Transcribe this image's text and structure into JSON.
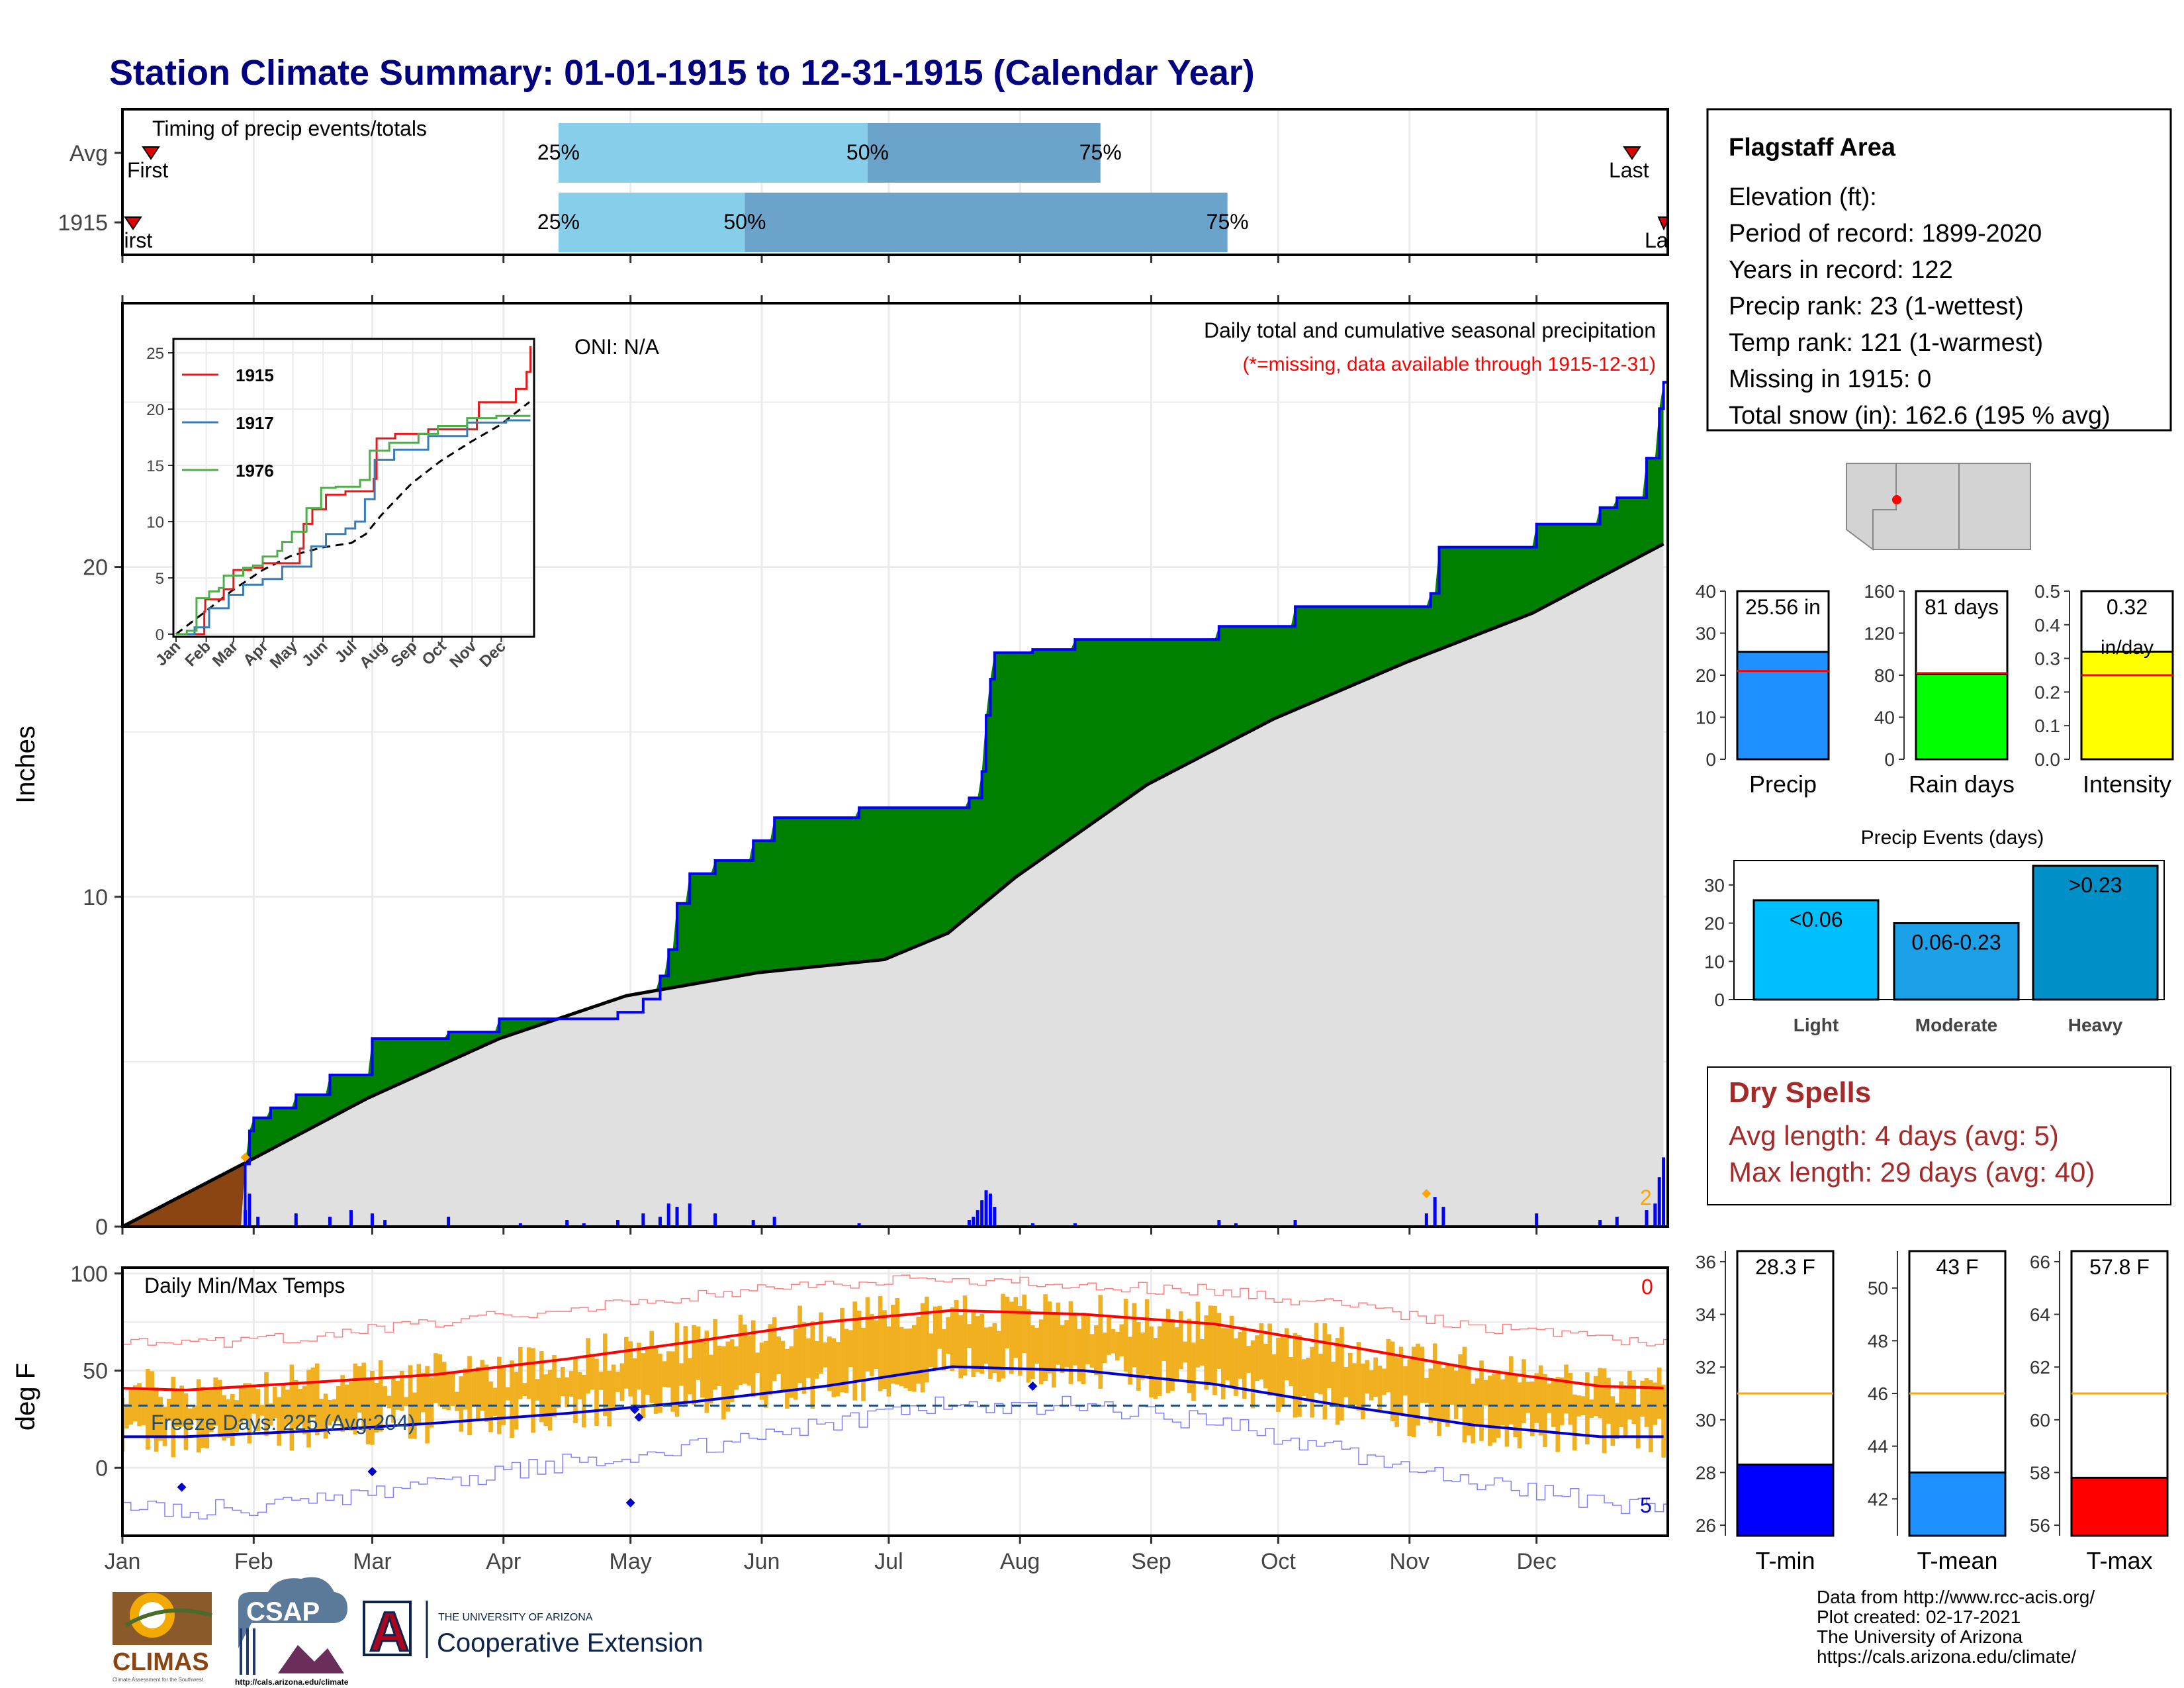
{
  "page_title": "Station Climate Summary: 01-01-1915 to 12-31-1915 (Calendar Year)",
  "colors": {
    "title": "#000080",
    "precip_green": "#008000",
    "cumulative_line": "#0000ff",
    "avg_fill": "#e0e0e0",
    "early_brown": "#8b4513",
    "daily_bar": "#0000ff",
    "timing_light": "#87ceeb",
    "timing_dark": "#6ba3cb",
    "temp_bar": "#f0b020",
    "tmax_line": "#ff0000",
    "tmin_line": "#0000cc",
    "dry_spells": "#a52a2a",
    "freeze_line": "#1f4e79"
  },
  "timing": {
    "title": "Timing of precip events/totals",
    "rows": [
      {
        "label": "Avg",
        "first": "First",
        "last": "Last",
        "p25_day": 104,
        "p50_day": 177,
        "p75_day": 232,
        "first_day": 6,
        "last_day": 366
      },
      {
        "label": "1915",
        "first": "First",
        "last": "Last",
        "p25_day": 104,
        "p50_day": 148,
        "p75_day": 262,
        "first_day": 1,
        "last_day": 365
      }
    ],
    "pct_labels": [
      "25%",
      "50%",
      "75%"
    ]
  },
  "main_chart": {
    "ylabel": "Inches",
    "oni": "ONI: N/A",
    "title": "Daily total and cumulative seasonal precipitation",
    "missing_note": "(*=missing, data available through 1915-12-31)",
    "y_ticks": [
      0,
      10,
      20
    ],
    "ylim": [
      0,
      28
    ],
    "x_months": [
      "Jan",
      "Feb",
      "Mar",
      "Apr",
      "May",
      "Jun",
      "Jul",
      "Aug",
      "Sep",
      "Oct",
      "Nov",
      "Dec"
    ],
    "corner_count": "2",
    "cumulative_1915_steps": [
      {
        "day": 1,
        "value": 0.0
      },
      {
        "day": 30,
        "value": 1.9
      },
      {
        "day": 31,
        "value": 2.9
      },
      {
        "day": 32,
        "value": 3.3
      },
      {
        "day": 36,
        "value": 3.6
      },
      {
        "day": 42,
        "value": 4.0
      },
      {
        "day": 50,
        "value": 4.6
      },
      {
        "day": 60,
        "value": 5.7
      },
      {
        "day": 78,
        "value": 5.9
      },
      {
        "day": 90,
        "value": 6.3
      },
      {
        "day": 118,
        "value": 6.5
      },
      {
        "day": 124,
        "value": 6.9
      },
      {
        "day": 128,
        "value": 7.6
      },
      {
        "day": 130,
        "value": 8.4
      },
      {
        "day": 132,
        "value": 9.8
      },
      {
        "day": 135,
        "value": 10.7
      },
      {
        "day": 141,
        "value": 11.1
      },
      {
        "day": 150,
        "value": 11.7
      },
      {
        "day": 155,
        "value": 12.4
      },
      {
        "day": 175,
        "value": 12.7
      },
      {
        "day": 201,
        "value": 13.0
      },
      {
        "day": 204,
        "value": 13.8
      },
      {
        "day": 205,
        "value": 15.5
      },
      {
        "day": 206,
        "value": 16.6
      },
      {
        "day": 207,
        "value": 17.4
      },
      {
        "day": 216,
        "value": 17.5
      },
      {
        "day": 226,
        "value": 17.8
      },
      {
        "day": 260,
        "value": 18.2
      },
      {
        "day": 278,
        "value": 18.8
      },
      {
        "day": 310,
        "value": 19.2
      },
      {
        "day": 312,
        "value": 20.6
      },
      {
        "day": 335,
        "value": 21.3
      },
      {
        "day": 350,
        "value": 21.8
      },
      {
        "day": 354,
        "value": 22.1
      },
      {
        "day": 361,
        "value": 23.3
      },
      {
        "day": 364,
        "value": 24.8
      },
      {
        "day": 365,
        "value": 25.6
      }
    ],
    "average_cumulative": [
      {
        "day": 1,
        "value": 0.0
      },
      {
        "day": 31,
        "value": 2.0
      },
      {
        "day": 59,
        "value": 3.9
      },
      {
        "day": 90,
        "value": 5.7
      },
      {
        "day": 120,
        "value": 7.0
      },
      {
        "day": 151,
        "value": 7.7
      },
      {
        "day": 181,
        "value": 8.1
      },
      {
        "day": 196,
        "value": 8.9
      },
      {
        "day": 212,
        "value": 10.6
      },
      {
        "day": 243,
        "value": 13.4
      },
      {
        "day": 273,
        "value": 15.4
      },
      {
        "day": 304,
        "value": 17.1
      },
      {
        "day": 334,
        "value": 18.6
      },
      {
        "day": 365,
        "value": 20.7
      }
    ],
    "daily_precip": [
      {
        "day": 30,
        "value": 0.5
      },
      {
        "day": 31,
        "value": 1.0
      },
      {
        "day": 33,
        "value": 0.3
      },
      {
        "day": 42,
        "value": 0.4
      },
      {
        "day": 50,
        "value": 0.3
      },
      {
        "day": 55,
        "value": 0.5
      },
      {
        "day": 60,
        "value": 0.4
      },
      {
        "day": 63,
        "value": 0.2
      },
      {
        "day": 78,
        "value": 0.3
      },
      {
        "day": 95,
        "value": 0.1
      },
      {
        "day": 106,
        "value": 0.2
      },
      {
        "day": 110,
        "value": 0.1
      },
      {
        "day": 118,
        "value": 0.2
      },
      {
        "day": 124,
        "value": 0.4
      },
      {
        "day": 128,
        "value": 0.3
      },
      {
        "day": 130,
        "value": 0.7
      },
      {
        "day": 132,
        "value": 0.6
      },
      {
        "day": 135,
        "value": 0.7
      },
      {
        "day": 141,
        "value": 0.4
      },
      {
        "day": 150,
        "value": 0.2
      },
      {
        "day": 155,
        "value": 0.3
      },
      {
        "day": 175,
        "value": 0.1
      },
      {
        "day": 201,
        "value": 0.2
      },
      {
        "day": 202,
        "value": 0.3
      },
      {
        "day": 203,
        "value": 0.5
      },
      {
        "day": 204,
        "value": 0.8
      },
      {
        "day": 205,
        "value": 1.1
      },
      {
        "day": 206,
        "value": 1.0
      },
      {
        "day": 207,
        "value": 0.6
      },
      {
        "day": 216,
        "value": 0.1
      },
      {
        "day": 226,
        "value": 0.1
      },
      {
        "day": 260,
        "value": 0.2
      },
      {
        "day": 264,
        "value": 0.1
      },
      {
        "day": 278,
        "value": 0.2
      },
      {
        "day": 309,
        "value": 0.4
      },
      {
        "day": 311,
        "value": 0.9
      },
      {
        "day": 313,
        "value": 0.6
      },
      {
        "day": 335,
        "value": 0.4
      },
      {
        "day": 350,
        "value": 0.2
      },
      {
        "day": 354,
        "value": 0.3
      },
      {
        "day": 361,
        "value": 0.5
      },
      {
        "day": 363,
        "value": 0.7
      },
      {
        "day": 364,
        "value": 1.5
      },
      {
        "day": 365,
        "value": 2.1
      }
    ]
  },
  "inset": {
    "y_ticks": [
      0,
      5,
      10,
      15,
      20,
      25
    ],
    "ylim": [
      0,
      26
    ],
    "x_months": [
      "Jan",
      "Feb",
      "Mar",
      "Apr",
      "May",
      "Jun",
      "Jul",
      "Aug",
      "Sep",
      "Oct",
      "Nov",
      "Dec"
    ],
    "series": [
      {
        "name": "1915",
        "color": "#e41a1c",
        "points": [
          [
            1,
            0
          ],
          [
            30,
            2.0
          ],
          [
            31,
            3.1
          ],
          [
            50,
            4.0
          ],
          [
            60,
            5.7
          ],
          [
            78,
            5.9
          ],
          [
            90,
            6.3
          ],
          [
            128,
            7.6
          ],
          [
            132,
            9.8
          ],
          [
            141,
            11.1
          ],
          [
            155,
            12.4
          ],
          [
            175,
            12.7
          ],
          [
            204,
            13.8
          ],
          [
            207,
            17.4
          ],
          [
            226,
            17.8
          ],
          [
            260,
            18.2
          ],
          [
            310,
            19.2
          ],
          [
            312,
            20.6
          ],
          [
            350,
            21.8
          ],
          [
            361,
            23.3
          ],
          [
            365,
            25.6
          ]
        ]
      },
      {
        "name": "1917",
        "color": "#377eb8",
        "points": [
          [
            1,
            0
          ],
          [
            20,
            0.6
          ],
          [
            35,
            2.3
          ],
          [
            55,
            3.5
          ],
          [
            70,
            4.4
          ],
          [
            90,
            4.9
          ],
          [
            110,
            6.0
          ],
          [
            140,
            7.8
          ],
          [
            155,
            8.9
          ],
          [
            175,
            9.4
          ],
          [
            185,
            10.0
          ],
          [
            195,
            12.0
          ],
          [
            205,
            15.5
          ],
          [
            225,
            16.4
          ],
          [
            260,
            17.6
          ],
          [
            300,
            18.8
          ],
          [
            340,
            19.0
          ],
          [
            365,
            19.0
          ]
        ]
      },
      {
        "name": "1976",
        "color": "#4daf4a",
        "points": [
          [
            1,
            0
          ],
          [
            12,
            0.3
          ],
          [
            18,
            0.3
          ],
          [
            22,
            3.2
          ],
          [
            35,
            3.8
          ],
          [
            45,
            4.1
          ],
          [
            50,
            5.2
          ],
          [
            70,
            5.9
          ],
          [
            80,
            6.1
          ],
          [
            90,
            6.9
          ],
          [
            105,
            7.4
          ],
          [
            110,
            8.2
          ],
          [
            120,
            9.1
          ],
          [
            135,
            11.2
          ],
          [
            150,
            13.0
          ],
          [
            165,
            13.1
          ],
          [
            180,
            13.1
          ],
          [
            190,
            13.7
          ],
          [
            200,
            16.3
          ],
          [
            220,
            17.0
          ],
          [
            250,
            17.8
          ],
          [
            270,
            18.5
          ],
          [
            300,
            19.2
          ],
          [
            330,
            19.4
          ],
          [
            365,
            19.4
          ]
        ]
      }
    ]
  },
  "temp_chart": {
    "ylabel": "deg F",
    "title": "Daily Min/Max Temps",
    "freeze_label": "Freeze Days: 225 (Avg:204)",
    "top_right_count": "0",
    "bottom_right_count": "5",
    "y_ticks": [
      0,
      50,
      100
    ],
    "ylim": [
      -35,
      103
    ],
    "x_months": [
      "Jan",
      "Feb",
      "Mar",
      "Apr",
      "May",
      "Jun",
      "Jul",
      "Aug",
      "Sep",
      "Oct",
      "Nov",
      "Dec"
    ],
    "avg_tmax_monthly": [
      40,
      44,
      48,
      56,
      65,
      75,
      81,
      79,
      74,
      63,
      51,
      42
    ],
    "avg_tmin_monthly": [
      16,
      19,
      23,
      28,
      34,
      42,
      52,
      50,
      43,
      32,
      22,
      16
    ],
    "record_max_monthly": [
      63,
      68,
      75,
      82,
      89,
      95,
      97,
      94,
      91,
      84,
      73,
      66
    ],
    "record_min_monthly": [
      -22,
      -18,
      -8,
      3,
      10,
      22,
      33,
      32,
      23,
      8,
      -8,
      -18
    ]
  },
  "station": {
    "name": "Flagstaff Area",
    "elevation": "Elevation (ft):",
    "period": "Period of record: 1899-2020",
    "years": "Years in record: 122",
    "precip_rank": "Precip rank: 23 (1-wettest)",
    "temp_rank": "Temp rank: 121 (1-warmest)",
    "missing": "Missing in 1915: 0",
    "snow": "Total snow (in): 162.6 (195 % avg)"
  },
  "mini_bars": [
    {
      "label": "Precip",
      "value_text": "25.56 in",
      "value": 25.56,
      "avg": 21,
      "ylim": [
        0,
        40
      ],
      "ticks": [
        0,
        10,
        20,
        30,
        40
      ],
      "color": "#1e90ff"
    },
    {
      "label": "Rain days",
      "value_text": "81 days",
      "value": 81,
      "avg": 82,
      "ylim": [
        0,
        160
      ],
      "ticks": [
        0,
        40,
        80,
        120,
        160
      ],
      "color": "#00ff00"
    },
    {
      "label": "Intensity",
      "value_text": "0.32",
      "unit_text": "in/day",
      "value": 0.32,
      "avg": 0.25,
      "ylim": [
        0,
        0.5
      ],
      "ticks": [
        0.0,
        0.1,
        0.2,
        0.3,
        0.4,
        0.5
      ],
      "color": "#ffff00"
    }
  ],
  "events": {
    "title": "Precip Events (days)",
    "ylim": [
      0,
      35
    ],
    "ticks": [
      0,
      10,
      20,
      30
    ],
    "bars": [
      {
        "label": "Light",
        "value_text": "<0.06",
        "value": 26,
        "color": "#00bfff"
      },
      {
        "label": "Moderate",
        "value_text": "0.06-0.23",
        "value": 20,
        "color": "#1ca0e8"
      },
      {
        "label": "Heavy",
        "value_text": ">0.23",
        "value": 35,
        "color": "#0090c8"
      }
    ]
  },
  "dry_spells": {
    "title": "Dry Spells",
    "avg": "Avg length: 4 days (avg: 5)",
    "max": "Max length: 29 days (avg: 40)"
  },
  "temp_bars": [
    {
      "label": "T-min",
      "value_text": "28.3 F",
      "value": 28.3,
      "avg": 31,
      "ylim": [
        25.6,
        36.4
      ],
      "ticks": [
        26,
        28,
        30,
        32,
        34,
        36
      ],
      "color": "#0000ff"
    },
    {
      "label": "T-mean",
      "value_text": "43 F",
      "value": 43,
      "avg": 46,
      "ylim": [
        40.6,
        51.4
      ],
      "ticks": [
        42,
        44,
        46,
        48,
        50
      ],
      "color": "#1e90ff"
    },
    {
      "label": "T-max",
      "value_text": "57.8 F",
      "value": 57.8,
      "avg": 61,
      "ylim": [
        55.6,
        66.4
      ],
      "ticks": [
        56,
        58,
        60,
        62,
        64,
        66
      ],
      "color": "#ff0000"
    }
  ],
  "credits": [
    "Data from http://www.rcc-acis.org/",
    "Plot created: 02-17-2021",
    "The University of Arizona",
    "https://cals.arizona.edu/climate/"
  ],
  "logos": {
    "climas": "CLIMAS",
    "climas_sub": "Climate Assessment for the Southwest",
    "csap": "CSAP",
    "csap_url": "http://cals.arizona.edu/climate",
    "ua_letter": "A",
    "ua_small": "THE UNIVERSITY OF ARIZONA",
    "ua_big": "Cooperative Extension"
  }
}
